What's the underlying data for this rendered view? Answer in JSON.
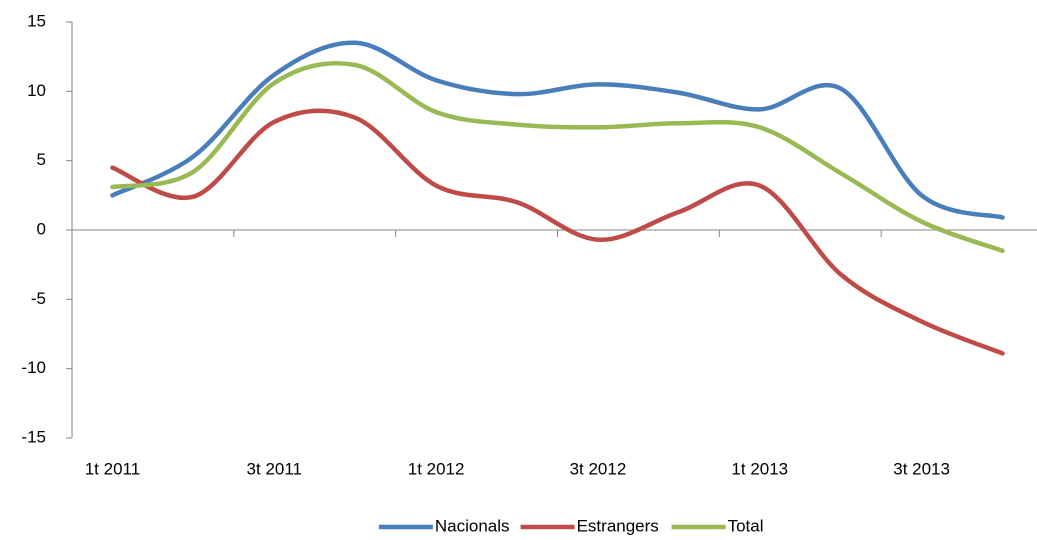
{
  "chart_data": {
    "type": "line",
    "categories": [
      "1t 2011",
      null,
      "3t 2011",
      null,
      "1t 2012",
      null,
      "3t 2012",
      null,
      "1t 2013",
      null,
      "3t 2013",
      null
    ],
    "series": [
      {
        "name": "Nacionals",
        "color": "#4a7ebb",
        "values": [
          2.5,
          5.3,
          11.2,
          13.5,
          10.8,
          9.8,
          10.5,
          9.9,
          8.7,
          10.2,
          2.5,
          0.9
        ]
      },
      {
        "name": "Estrangers",
        "color": "#be4b48",
        "values": [
          4.5,
          2.4,
          7.8,
          8.1,
          3.2,
          2.0,
          -0.7,
          1.3,
          3.2,
          -3.2,
          -6.6,
          -8.9
        ]
      },
      {
        "name": "Total",
        "color": "#98b954",
        "values": [
          3.1,
          4.2,
          10.6,
          11.9,
          8.5,
          7.6,
          7.4,
          7.7,
          7.4,
          4.1,
          0.6,
          -1.5
        ]
      }
    ],
    "ylim": [
      -15,
      15
    ],
    "yticks": [
      -15,
      -10,
      -5,
      0,
      5,
      10,
      15
    ],
    "legend": "bottom"
  }
}
